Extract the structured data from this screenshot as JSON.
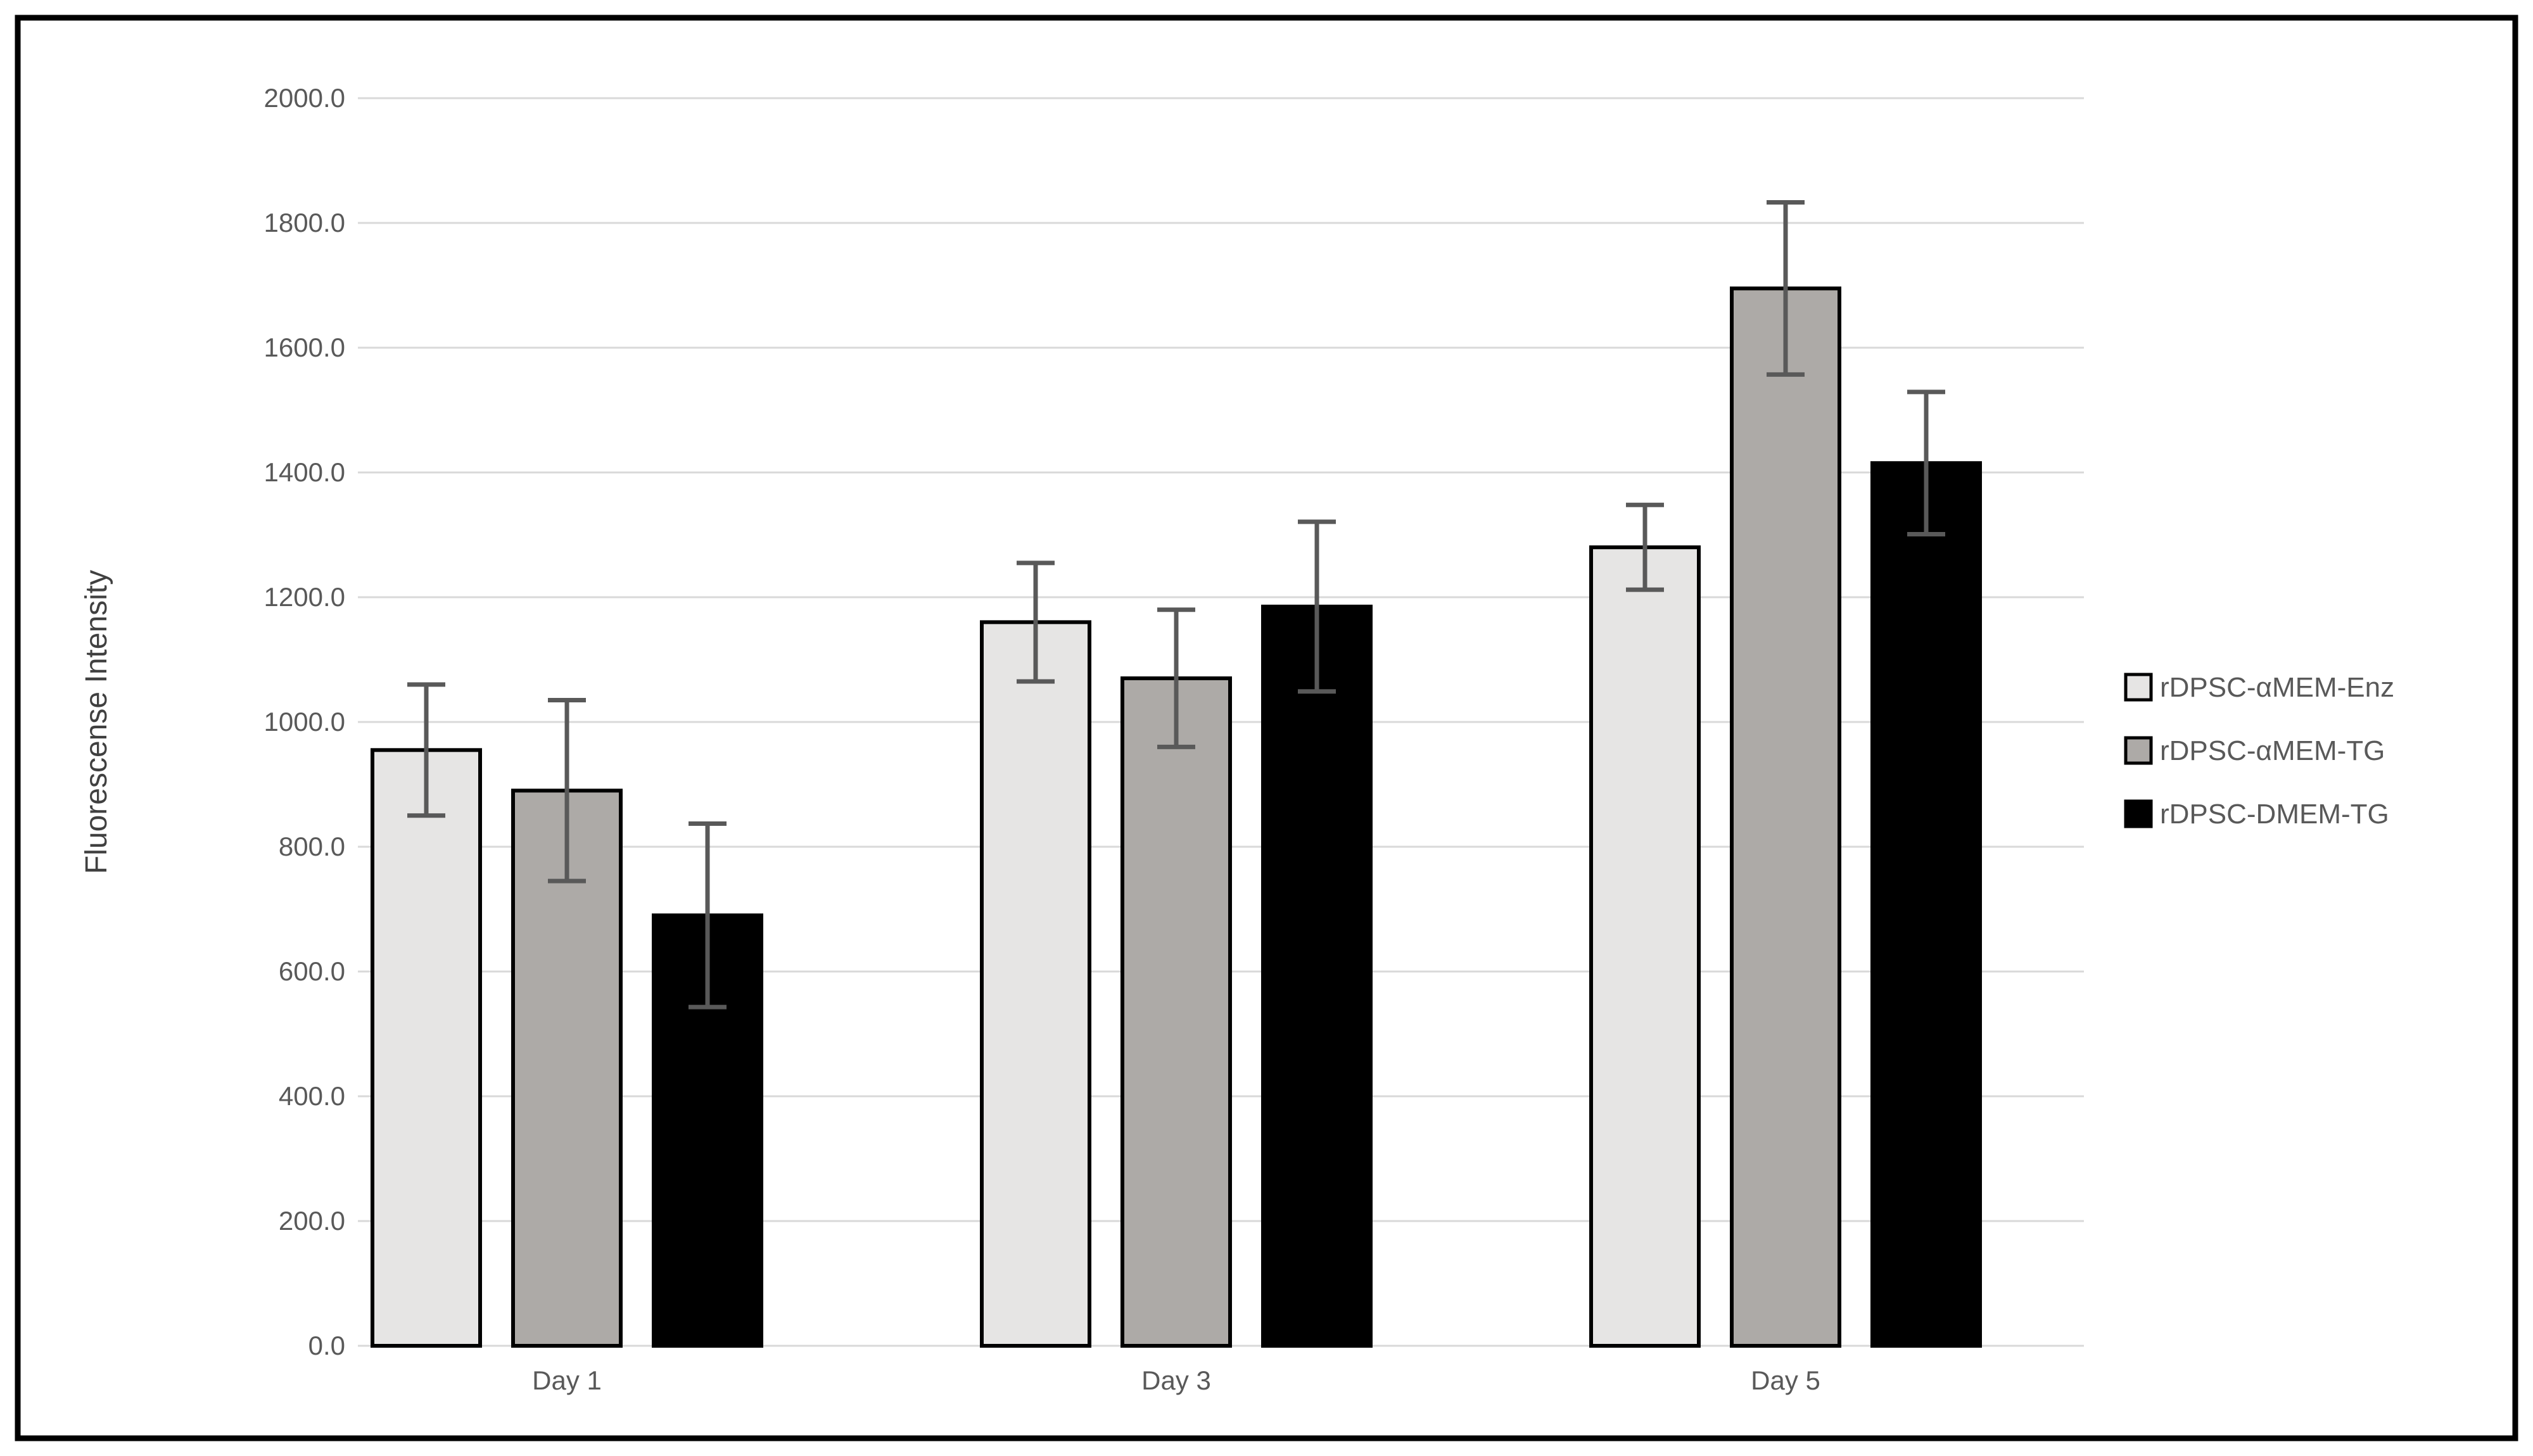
{
  "figure": {
    "background": "#ffffff",
    "frame_color": "#000000"
  },
  "chart_data": {
    "type": "bar",
    "title": "",
    "xlabel": "",
    "ylabel": "Fluorescense Intensity",
    "categories": [
      "Day 1",
      "Day 3",
      "Day 5"
    ],
    "series": [
      {
        "name": "rDPSC-αMEM-Enz",
        "fill": "#e6e5e4",
        "stroke": "#000000",
        "values": [
          955,
          1160,
          1280
        ],
        "errors": [
          105,
          95,
          68
        ]
      },
      {
        "name": "rDPSC-αMEM-TG",
        "fill": "#adaaa7",
        "stroke": "#000000",
        "values": [
          890,
          1070,
          1695
        ],
        "errors": [
          145,
          110,
          138
        ]
      },
      {
        "name": "rDPSC-DMEM-TG",
        "fill": "#000000",
        "stroke": "#000000",
        "values": [
          690,
          1185,
          1415
        ],
        "errors": [
          147,
          136,
          114
        ]
      }
    ],
    "ylim": [
      0,
      2000
    ],
    "ytick_step": 200,
    "ytick_labels": [
      "0.0",
      "200.0",
      "400.0",
      "600.0",
      "800.0",
      "1000.0",
      "1200.0",
      "1400.0",
      "1600.0",
      "1800.0",
      "2000.0"
    ],
    "grid": true,
    "error_bars": true,
    "legend_position": "right",
    "colors": {
      "gridline": "#d9d9d9",
      "tick_text": "#595959",
      "axis_title_text": "#404040",
      "error_bar": "#595959",
      "legend_text": "#595959"
    }
  }
}
